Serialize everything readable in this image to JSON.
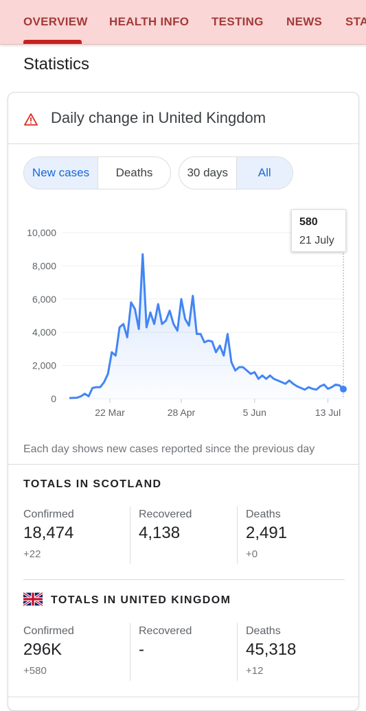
{
  "tabs": [
    {
      "label": "OVERVIEW",
      "active": true
    },
    {
      "label": "HEALTH INFO"
    },
    {
      "label": "TESTING"
    },
    {
      "label": "NEWS"
    },
    {
      "label": "STATISTICS"
    }
  ],
  "section_title": "Statistics",
  "card": {
    "title": "Daily change in United Kingdom",
    "icon": "warning-icon",
    "metric_toggle": {
      "options": [
        "New cases",
        "Deaths"
      ],
      "selected": "New cases"
    },
    "range_toggle": {
      "options": [
        "30 days",
        "All"
      ],
      "selected": "All"
    },
    "tooltip": {
      "value": "580",
      "date": "21 July"
    },
    "note": "Each day shows new cases reported since the previous day"
  },
  "chart_data": {
    "type": "area",
    "title": "",
    "xlabel": "",
    "ylabel": "",
    "x_tick_labels": [
      "22 Mar",
      "28 Apr",
      "5 Jun",
      "13 Jul"
    ],
    "y_ticks": [
      "0",
      "2,000",
      "4,000",
      "6,000",
      "8,000",
      "10,000"
    ],
    "ylim": [
      0,
      10000
    ],
    "grid": true,
    "color": "#4285f4",
    "series": [
      {
        "x": [
          "1 Mar",
          "3 Mar",
          "5 Mar",
          "7 Mar",
          "9 Mar",
          "11 Mar",
          "13 Mar",
          "15 Mar",
          "17 Mar",
          "19 Mar",
          "21 Mar",
          "23 Mar",
          "25 Mar",
          "27 Mar",
          "29 Mar",
          "31 Mar",
          "2 Apr",
          "4 Apr",
          "6 Apr",
          "8 Apr",
          "10 Apr",
          "12 Apr",
          "14 Apr",
          "16 Apr",
          "18 Apr",
          "20 Apr",
          "22 Apr",
          "24 Apr",
          "26 Apr",
          "28 Apr",
          "30 Apr",
          "2 May",
          "4 May",
          "6 May",
          "8 May",
          "10 May",
          "12 May",
          "14 May",
          "16 May",
          "18 May",
          "20 May",
          "22 May",
          "24 May",
          "26 May",
          "28 May",
          "30 May",
          "1 Jun",
          "3 Jun",
          "5 Jun",
          "7 Jun",
          "9 Jun",
          "11 Jun",
          "13 Jun",
          "15 Jun",
          "17 Jun",
          "19 Jun",
          "21 Jun",
          "23 Jun",
          "25 Jun",
          "27 Jun",
          "29 Jun",
          "1 Jul",
          "3 Jul",
          "5 Jul",
          "7 Jul",
          "9 Jul",
          "11 Jul",
          "13 Jul",
          "15 Jul",
          "17 Jul",
          "19 Jul",
          "21 Jul"
        ],
        "values": [
          40,
          50,
          60,
          150,
          300,
          150,
          650,
          700,
          700,
          1000,
          1500,
          2800,
          2600,
          4300,
          4500,
          3700,
          5800,
          5400,
          4200,
          8700,
          4300,
          5200,
          4500,
          5700,
          4500,
          4700,
          5300,
          4500,
          4100,
          6000,
          4800,
          4400,
          6200,
          3900,
          3900,
          3400,
          3500,
          3450,
          2800,
          3200,
          2600,
          3900,
          2200,
          1700,
          1900,
          1900,
          1700,
          1500,
          1600,
          1200,
          1400,
          1200,
          1400,
          1200,
          1100,
          1000,
          900,
          1100,
          900,
          750,
          650,
          550,
          700,
          600,
          550,
          750,
          850,
          600,
          700,
          850,
          800,
          580
        ]
      }
    ],
    "selected_point": {
      "date": "21 July",
      "value": 580
    }
  },
  "totals_scotland": {
    "title": "TOTALS IN SCOTLAND",
    "stats": [
      {
        "label": "Confirmed",
        "value": "18,474",
        "change": "+22"
      },
      {
        "label": "Recovered",
        "value": "4,138",
        "change": ""
      },
      {
        "label": "Deaths",
        "value": "2,491",
        "change": "+0"
      }
    ]
  },
  "totals_uk": {
    "title": "TOTALS IN UNITED KINGDOM",
    "flag": "uk-flag-icon",
    "stats": [
      {
        "label": "Confirmed",
        "value": "296K",
        "change": "+580"
      },
      {
        "label": "Recovered",
        "value": "-",
        "change": ""
      },
      {
        "label": "Deaths",
        "value": "45,318",
        "change": "+12"
      }
    ]
  }
}
